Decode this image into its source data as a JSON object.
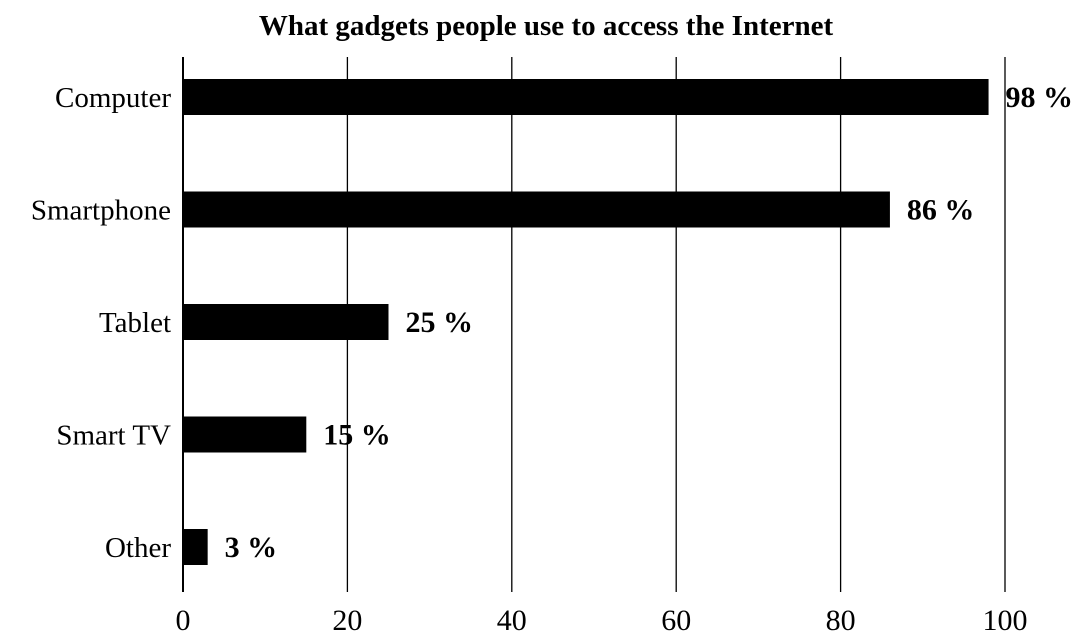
{
  "chart_data": {
    "type": "bar",
    "orientation": "horizontal",
    "title": "What gadgets people use to access the Internet",
    "xlabel": "",
    "ylabel": "",
    "categories": [
      "Computer",
      "Smartphone",
      "Tablet",
      "Smart TV",
      "Other"
    ],
    "values": [
      98,
      86,
      25,
      15,
      3
    ],
    "data_labels": [
      "98 %",
      "86 %",
      "25 %",
      "15 %",
      "3 %"
    ],
    "xlim": [
      0,
      100
    ],
    "xticks": [
      0,
      20,
      40,
      60,
      80,
      100
    ],
    "grid": "vertical",
    "legend": "none",
    "bar_color": "#000000",
    "grid_color": "#000000",
    "background_color": "#ffffff"
  }
}
